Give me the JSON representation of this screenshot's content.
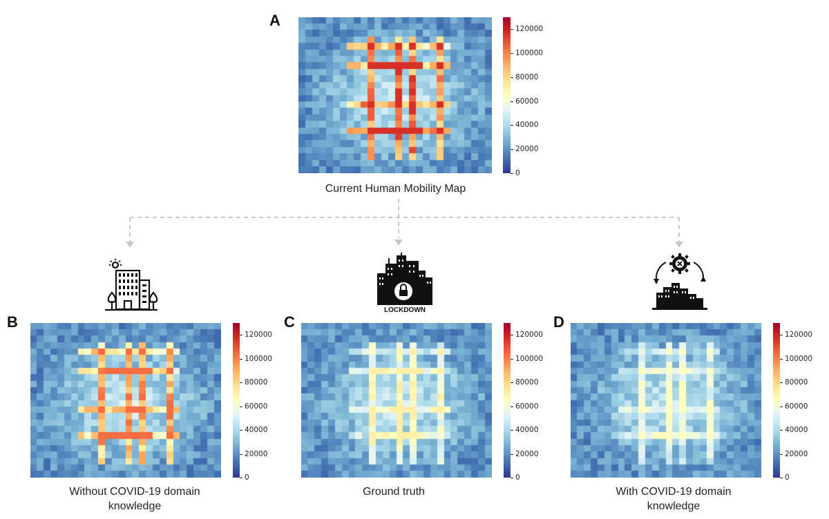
{
  "panels": {
    "A": {
      "letter": "A",
      "caption": "Current Human Mobility Map"
    },
    "B": {
      "letter": "B",
      "caption_line1": "Without COVID-19 domain",
      "caption_line2": "knowledge"
    },
    "C": {
      "letter": "C",
      "caption": "Ground truth",
      "icon_label": "LOCKDOWN"
    },
    "D": {
      "letter": "D",
      "caption_line1": "With COVID-19 domain",
      "caption_line2": "knowledge"
    }
  },
  "colorbar": {
    "ticks": [
      "0",
      "20000",
      "40000",
      "60000",
      "80000",
      "100000",
      "120000"
    ],
    "max": 130000,
    "colormap": "RdYlBu_r"
  },
  "chart_data": [
    {
      "type": "heatmap",
      "panel": "A",
      "grid": [
        28,
        24
      ],
      "vmin": 0,
      "vmax": 130000,
      "peak_level": 0.85
    },
    {
      "type": "heatmap",
      "panel": "B",
      "grid": [
        28,
        24
      ],
      "vmin": 0,
      "vmax": 130000,
      "peak_level": 0.75
    },
    {
      "type": "heatmap",
      "panel": "C",
      "grid": [
        28,
        24
      ],
      "vmin": 0,
      "vmax": 130000,
      "peak_level": 0.5
    },
    {
      "type": "heatmap",
      "panel": "D",
      "grid": [
        28,
        24
      ],
      "vmin": 0,
      "vmax": 130000,
      "peak_level": 0.45
    }
  ],
  "icons": {
    "B": "office-building-icon",
    "C": "city-lockdown-icon",
    "D": "city-gear-cycle-icon"
  },
  "colors": {
    "arrow": "#c8c8c8",
    "cmap_low": "#313695",
    "cmap_high": "#a50026"
  }
}
